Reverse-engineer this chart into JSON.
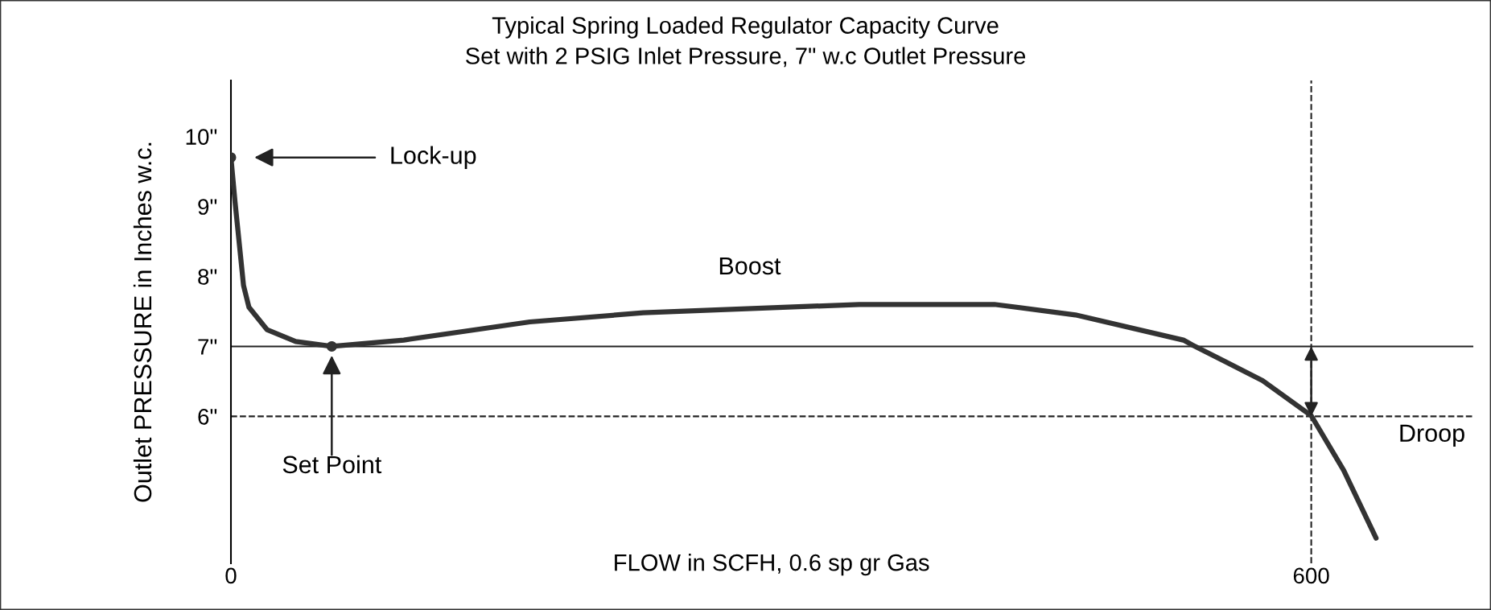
{
  "chart_data": {
    "type": "line",
    "title": "Typical Spring Loaded Regulator Capacity Curve",
    "subtitle": "Set with 2 PSIG Inlet Pressure, 7\" w.c Outlet Pressure",
    "xlabel": "FLOW in SCFH, 0.6 sp gr Gas",
    "ylabel": "Outlet PRESSURE in Inches w.c.",
    "series": [
      {
        "color": "#333333",
        "x": [
          0,
          2.3,
          7,
          10,
          20,
          36,
          56,
          96,
          166,
          229,
          349,
          424,
          469,
          529,
          534,
          573,
          600,
          618,
          636
        ],
        "values": [
          9.7,
          9.06,
          7.87,
          7.56,
          7.24,
          7.07,
          7.0,
          7.09,
          7.35,
          7.48,
          7.6,
          7.6,
          7.45,
          7.09,
          7.02,
          6.51,
          6.01,
          5.23,
          4.26
        ]
      },
      {
        "type": "scatter",
        "color": "#333333",
        "marker": "circle",
        "x": [
          0,
          56
        ],
        "values": [
          9.7,
          7.0
        ]
      }
    ],
    "xlim": [
      0,
      690
    ],
    "ylim": [
      3.9,
      10.8
    ],
    "xticks": [
      0,
      600
    ],
    "yticks": [
      {
        "value": 6,
        "label": "6\""
      },
      {
        "value": 7,
        "label": "7\""
      },
      {
        "value": 8,
        "label": "8\""
      },
      {
        "value": 9,
        "label": "9\""
      },
      {
        "value": 10,
        "label": "10\""
      }
    ],
    "ref_lines": [
      {
        "axis": "y",
        "value": 7,
        "color": "#222222",
        "line_style": "solid"
      },
      {
        "axis": "y",
        "value": 6,
        "color": "#222222",
        "line_style": "dashed"
      },
      {
        "axis": "x",
        "value": 600,
        "color": "#222222",
        "line_style": "dashed"
      }
    ],
    "annotations": [
      "Lock-up",
      "Set Point",
      "Boost",
      "Droop"
    ],
    "grid": false,
    "line_style": "solid"
  }
}
